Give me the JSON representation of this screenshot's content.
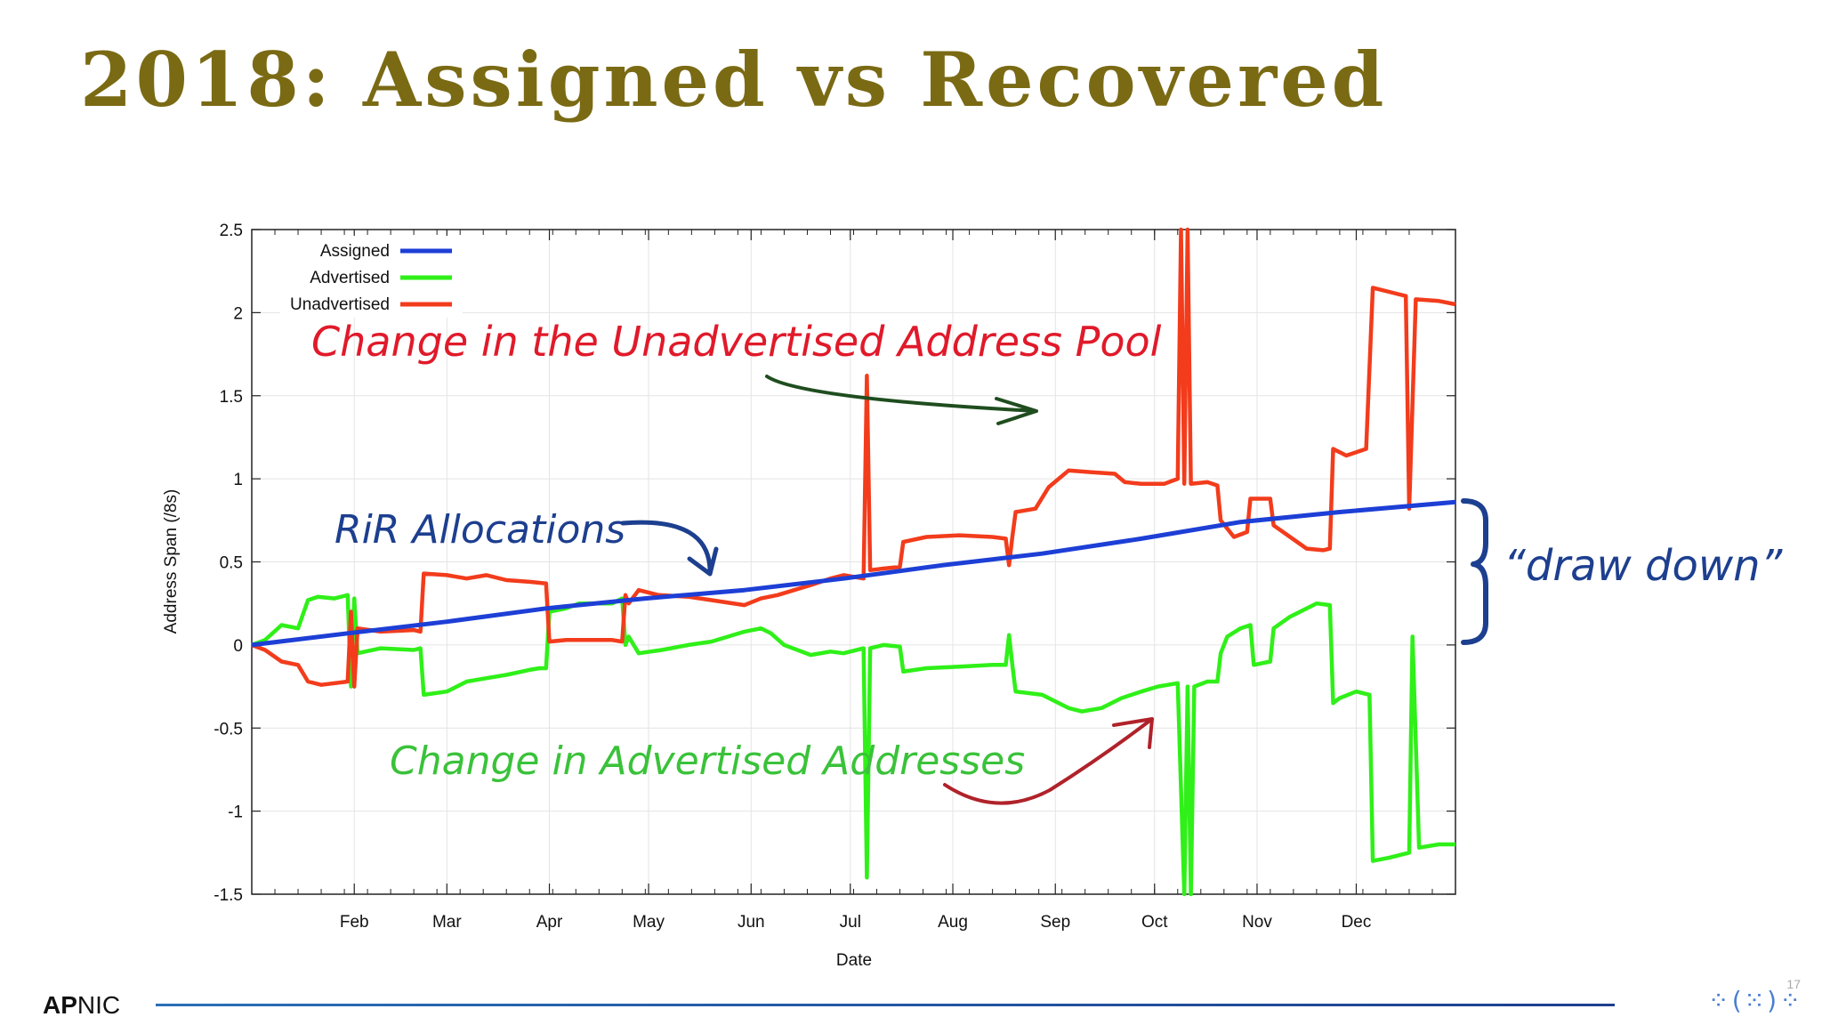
{
  "slide": {
    "title": "2018: Assigned vs Recovered",
    "logo_text_bold": "AP",
    "logo_text_light": "NIC",
    "page_number": "17",
    "decor_icon": "dots-ring-icon"
  },
  "annotations": {
    "unadvertised_note": "Change in the Unadvertised Address Pool",
    "rir_note": "RiR Allocations",
    "advertised_note": "Change in Advertised Addresses",
    "drawdown_note": "“draw down”"
  },
  "colors": {
    "title": "#7a6a14",
    "assigned": "#1d3fd6",
    "advertised": "#2ff018",
    "unadvertised": "#f23c1c",
    "note_red": "#e01a2a",
    "note_blue": "#1d3f8f",
    "note_green": "#3ac23a",
    "arrow_dark_green": "#1f4d1f",
    "arrow_dark_red": "#b0222a",
    "brace_blue": "#1d3f8f"
  },
  "chart_data": {
    "type": "line",
    "xlabel": "Date",
    "ylabel": "Address Span (/8s)",
    "ylim": [
      -1.5,
      2.5
    ],
    "yticks": [
      "2.5",
      "2",
      "1.5",
      "1",
      "0.5",
      "0",
      "-0.5",
      "-1",
      "-1.5"
    ],
    "xticks": [
      "Feb",
      "Mar",
      "Apr",
      "May",
      "Jun",
      "Jul",
      "Aug",
      "Sep",
      "Oct",
      "Nov",
      "Dec"
    ],
    "grid": true,
    "legend_position": "top-left",
    "x_unit": "day of 2018",
    "series": [
      {
        "name": "Assigned",
        "color": "#1d3fd6",
        "points": [
          [
            1,
            0.0
          ],
          [
            30,
            0.07
          ],
          [
            60,
            0.14
          ],
          [
            90,
            0.22
          ],
          [
            120,
            0.28
          ],
          [
            150,
            0.33
          ],
          [
            180,
            0.4
          ],
          [
            210,
            0.48
          ],
          [
            240,
            0.55
          ],
          [
            270,
            0.64
          ],
          [
            300,
            0.74
          ],
          [
            330,
            0.8
          ],
          [
            365,
            0.86
          ]
        ]
      },
      {
        "name": "Advertised",
        "color": "#2ff018",
        "points": [
          [
            1,
            0.0
          ],
          [
            5,
            0.03
          ],
          [
            10,
            0.12
          ],
          [
            15,
            0.1
          ],
          [
            18,
            0.27
          ],
          [
            21,
            0.29
          ],
          [
            26,
            0.28
          ],
          [
            30,
            0.3
          ],
          [
            31,
            -0.25
          ],
          [
            32,
            0.28
          ],
          [
            33,
            -0.05
          ],
          [
            40,
            -0.02
          ],
          [
            50,
            -0.03
          ],
          [
            52,
            -0.02
          ],
          [
            53,
            -0.3
          ],
          [
            60,
            -0.28
          ],
          [
            66,
            -0.22
          ],
          [
            72,
            -0.2
          ],
          [
            78,
            -0.18
          ],
          [
            85,
            -0.15
          ],
          [
            88,
            -0.14
          ],
          [
            90,
            -0.14
          ],
          [
            91,
            0.2
          ],
          [
            96,
            0.22
          ],
          [
            100,
            0.25
          ],
          [
            110,
            0.25
          ],
          [
            113,
            0.28
          ],
          [
            114,
            0.0
          ],
          [
            115,
            0.05
          ],
          [
            118,
            -0.05
          ],
          [
            125,
            -0.03
          ],
          [
            133,
            0.0
          ],
          [
            140,
            0.02
          ],
          [
            145,
            0.05
          ],
          [
            150,
            0.08
          ],
          [
            155,
            0.1
          ],
          [
            158,
            0.07
          ],
          [
            162,
            0.0
          ],
          [
            170,
            -0.06
          ],
          [
            176,
            -0.04
          ],
          [
            180,
            -0.05
          ],
          [
            186,
            -0.02
          ],
          [
            187,
            -1.4
          ],
          [
            188,
            -0.02
          ],
          [
            192,
            0.0
          ],
          [
            197,
            -0.01
          ],
          [
            198,
            -0.16
          ],
          [
            205,
            -0.14
          ],
          [
            215,
            -0.13
          ],
          [
            225,
            -0.12
          ],
          [
            229,
            -0.12
          ],
          [
            230,
            0.06
          ],
          [
            231,
            -0.12
          ],
          [
            232,
            -0.28
          ],
          [
            240,
            -0.3
          ],
          [
            248,
            -0.38
          ],
          [
            252,
            -0.4
          ],
          [
            258,
            -0.38
          ],
          [
            264,
            -0.32
          ],
          [
            270,
            -0.28
          ],
          [
            275,
            -0.25
          ],
          [
            281,
            -0.23
          ],
          [
            283,
            -1.5
          ],
          [
            284,
            -0.25
          ],
          [
            285,
            -1.5
          ],
          [
            286,
            -0.25
          ],
          [
            290,
            -0.22
          ],
          [
            293,
            -0.22
          ],
          [
            294,
            -0.05
          ],
          [
            296,
            0.05
          ],
          [
            300,
            0.1
          ],
          [
            303,
            0.12
          ],
          [
            304,
            -0.12
          ],
          [
            309,
            -0.1
          ],
          [
            310,
            0.1
          ],
          [
            315,
            0.17
          ],
          [
            323,
            0.25
          ],
          [
            327,
            0.24
          ],
          [
            328,
            -0.35
          ],
          [
            330,
            -0.32
          ],
          [
            335,
            -0.28
          ],
          [
            339,
            -0.3
          ],
          [
            340,
            -1.3
          ],
          [
            345,
            -1.28
          ],
          [
            351,
            -1.25
          ],
          [
            352,
            0.05
          ],
          [
            354,
            -1.22
          ],
          [
            360,
            -1.2
          ],
          [
            365,
            -1.2
          ]
        ]
      },
      {
        "name": "Unadvertised",
        "color": "#f23c1c",
        "points": [
          [
            1,
            0.0
          ],
          [
            5,
            -0.03
          ],
          [
            10,
            -0.1
          ],
          [
            15,
            -0.12
          ],
          [
            18,
            -0.22
          ],
          [
            22,
            -0.24
          ],
          [
            30,
            -0.22
          ],
          [
            31,
            0.2
          ],
          [
            32,
            -0.25
          ],
          [
            33,
            0.1
          ],
          [
            40,
            0.08
          ],
          [
            50,
            0.09
          ],
          [
            52,
            0.08
          ],
          [
            53,
            0.43
          ],
          [
            60,
            0.42
          ],
          [
            66,
            0.4
          ],
          [
            72,
            0.42
          ],
          [
            78,
            0.39
          ],
          [
            85,
            0.38
          ],
          [
            90,
            0.37
          ],
          [
            91,
            0.02
          ],
          [
            96,
            0.03
          ],
          [
            110,
            0.03
          ],
          [
            113,
            0.02
          ],
          [
            114,
            0.3
          ],
          [
            115,
            0.25
          ],
          [
            118,
            0.33
          ],
          [
            124,
            0.3
          ],
          [
            133,
            0.29
          ],
          [
            140,
            0.27
          ],
          [
            150,
            0.24
          ],
          [
            155,
            0.28
          ],
          [
            160,
            0.3
          ],
          [
            165,
            0.33
          ],
          [
            170,
            0.36
          ],
          [
            176,
            0.4
          ],
          [
            180,
            0.42
          ],
          [
            186,
            0.4
          ],
          [
            187,
            1.62
          ],
          [
            188,
            0.45
          ],
          [
            192,
            0.46
          ],
          [
            197,
            0.47
          ],
          [
            198,
            0.62
          ],
          [
            205,
            0.65
          ],
          [
            215,
            0.66
          ],
          [
            225,
            0.65
          ],
          [
            229,
            0.64
          ],
          [
            230,
            0.48
          ],
          [
            231,
            0.65
          ],
          [
            232,
            0.8
          ],
          [
            238,
            0.82
          ],
          [
            242,
            0.95
          ],
          [
            248,
            1.05
          ],
          [
            255,
            1.04
          ],
          [
            262,
            1.03
          ],
          [
            265,
            0.98
          ],
          [
            270,
            0.97
          ],
          [
            277,
            0.97
          ],
          [
            281,
            1.0
          ],
          [
            282,
            2.5
          ],
          [
            283,
            0.97
          ],
          [
            284,
            2.5
          ],
          [
            285,
            0.97
          ],
          [
            290,
            0.98
          ],
          [
            293,
            0.96
          ],
          [
            294,
            0.75
          ],
          [
            298,
            0.65
          ],
          [
            302,
            0.68
          ],
          [
            303,
            0.88
          ],
          [
            309,
            0.88
          ],
          [
            310,
            0.72
          ],
          [
            315,
            0.65
          ],
          [
            320,
            0.58
          ],
          [
            325,
            0.57
          ],
          [
            327,
            0.58
          ],
          [
            328,
            1.18
          ],
          [
            332,
            1.14
          ],
          [
            338,
            1.18
          ],
          [
            340,
            2.15
          ],
          [
            346,
            2.12
          ],
          [
            350,
            2.1
          ],
          [
            351,
            0.82
          ],
          [
            353,
            2.08
          ],
          [
            360,
            2.07
          ],
          [
            365,
            2.05
          ]
        ]
      }
    ]
  }
}
